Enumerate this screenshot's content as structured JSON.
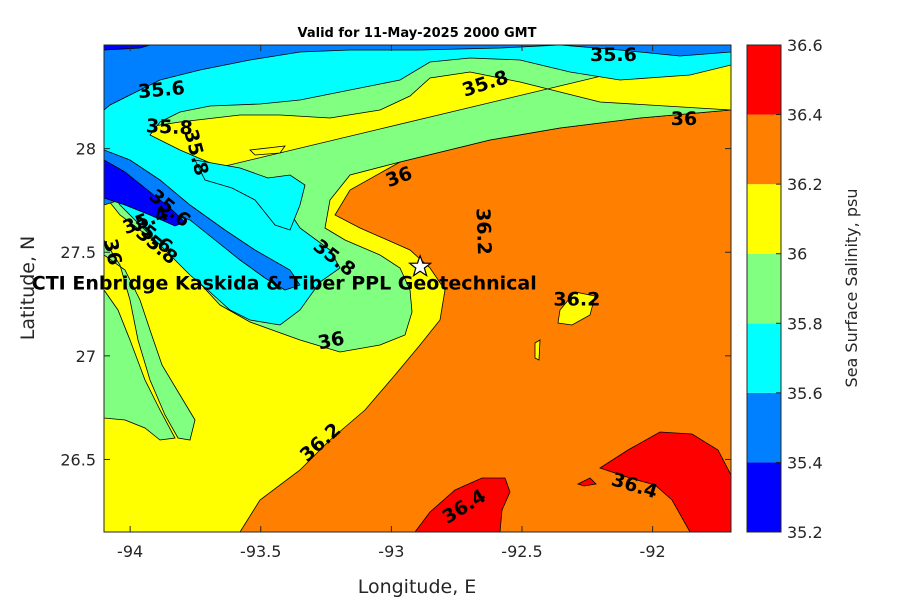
{
  "chart_data": {
    "type": "contour",
    "title": "Valid for 11-May-2025 2000 GMT",
    "xlabel": "Longitude, E",
    "ylabel": "Latitude, N",
    "colorbar_label": "Sea Surface Salinity, psu",
    "xlim": [
      -94.1,
      -91.7
    ],
    "ylim": [
      26.15,
      28.5
    ],
    "xticks": [
      -94,
      -93.5,
      -93,
      -92.5,
      -92
    ],
    "xtick_labels": [
      "-94",
      "-93.5",
      "-93",
      "-92.5",
      "-92"
    ],
    "yticks": [
      26.5,
      27,
      27.5,
      28
    ],
    "ytick_labels": [
      "26.5",
      "27",
      "27.5",
      "28"
    ],
    "colorbar": {
      "range": [
        35.2,
        36.6
      ],
      "ticks": [
        "35.2",
        "35.4",
        "35.6",
        "35.8",
        "36",
        "36.2",
        "36.4",
        "36.6"
      ],
      "colors": [
        "#0000ff",
        "#0080ff",
        "#00ffff",
        "#80ff80",
        "#ffff00",
        "#ff8000",
        "#ff0000"
      ]
    },
    "contour_labels": [
      {
        "text": "35.6",
        "x": -93.88,
        "y": 28.28,
        "angle": -5
      },
      {
        "text": "35.6",
        "x": -92.15,
        "y": 28.45,
        "angle": 0
      },
      {
        "text": "35.8",
        "x": -93.85,
        "y": 28.1,
        "angle": 3
      },
      {
        "text": "35.8",
        "x": -92.64,
        "y": 28.31,
        "angle": -18
      },
      {
        "text": "35.8",
        "x": -93.75,
        "y": 27.98,
        "angle": 75
      },
      {
        "text": "35.8",
        "x": -93.22,
        "y": 27.47,
        "angle": 38
      },
      {
        "text": "35.6",
        "x": -93.85,
        "y": 27.71,
        "angle": 40
      },
      {
        "text": "35.4",
        "x": -93.94,
        "y": 27.65,
        "angle": -20
      },
      {
        "text": "35.6",
        "x": -93.92,
        "y": 27.58,
        "angle": 38
      },
      {
        "text": "35.8",
        "x": -93.9,
        "y": 27.53,
        "angle": 40
      },
      {
        "text": "36",
        "x": -94.07,
        "y": 27.5,
        "angle": 78
      },
      {
        "text": "36",
        "x": -92.97,
        "y": 27.86,
        "angle": -20
      },
      {
        "text": "36",
        "x": -91.88,
        "y": 28.14,
        "angle": 0
      },
      {
        "text": "36",
        "x": -93.23,
        "y": 27.07,
        "angle": -12
      },
      {
        "text": "36.2",
        "x": -92.65,
        "y": 27.6,
        "angle": 88
      },
      {
        "text": "36.2",
        "x": -92.29,
        "y": 27.27,
        "angle": 0
      },
      {
        "text": "36.2",
        "x": -93.27,
        "y": 26.58,
        "angle": -42
      },
      {
        "text": "36.4",
        "x": -92.72,
        "y": 26.27,
        "angle": -32
      },
      {
        "text": "36.4",
        "x": -92.07,
        "y": 26.37,
        "angle": 17
      }
    ],
    "annotation": {
      "text": "CTI Enbridge  Kaskida & Tiber PPL Geotechnical",
      "x": -93.41,
      "y": 27.35
    },
    "site_marker": {
      "x": -92.89,
      "y": 27.43,
      "symbol": "star"
    }
  }
}
